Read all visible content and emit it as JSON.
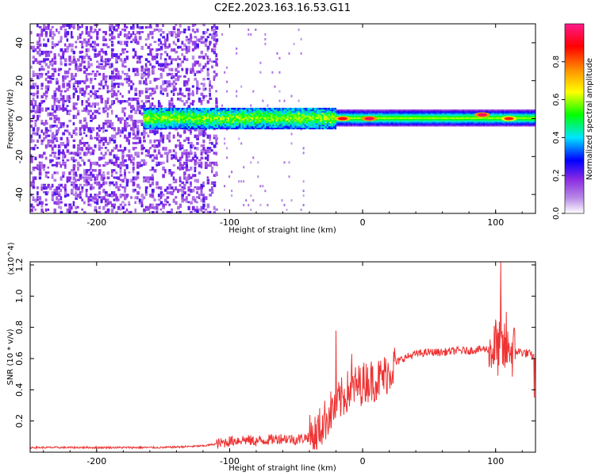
{
  "title": "C2E2.2023.163.16.53.G11",
  "chart_data": [
    {
      "type": "heatmap",
      "xlabel": "Height of straight line (km)",
      "ylabel": "Frequency (Hz)",
      "xlim": [
        -250,
        130
      ],
      "ylim": [
        -50,
        50
      ],
      "xticks": [
        -200,
        -100,
        0,
        100
      ],
      "yticks": [
        -40,
        -20,
        0,
        20,
        40
      ],
      "colorbar": {
        "label": "Normalized spectral amplitude",
        "range": [
          0,
          1
        ],
        "ticks": [
          "0.0",
          "0.2",
          "0.4",
          "0.6",
          "0.8"
        ],
        "colors": [
          "#ffffff",
          "#8a2be2",
          "#0000ff",
          "#00e5ff",
          "#00ff00",
          "#ffff00",
          "#ff8c00",
          "#ff0000",
          "#ff1a8c"
        ]
      },
      "features": [
        {
          "name": "noise",
          "x_range": [
            -250,
            -110
          ],
          "freq_range": [
            -50,
            50
          ]
        },
        {
          "name": "signal band",
          "x_range": [
            -165,
            130
          ],
          "center_freq": 0,
          "half_width": 4
        },
        {
          "name": "peak",
          "x": -15,
          "freq": 0,
          "amplitude": 0.9
        },
        {
          "name": "peak",
          "x": 5,
          "freq": 0,
          "amplitude": 0.95
        },
        {
          "name": "peak",
          "x": 90,
          "freq": 2,
          "amplitude": 0.95
        },
        {
          "name": "peak",
          "x": 110,
          "freq": 0,
          "amplitude": 0.85
        }
      ]
    },
    {
      "type": "line",
      "xlabel": "Height of straight line (km)",
      "ylabel": "SNR (10 * v/v)",
      "y_multiplier": "(x10^4)",
      "xlim": [
        -250,
        130
      ],
      "ylim": [
        0,
        1.22
      ],
      "xticks": [
        -200,
        -100,
        0,
        100
      ],
      "yticks": [
        "0.2",
        "0.4",
        "0.6",
        "0.8",
        "1.0",
        "1.2"
      ],
      "color": "#ee3333",
      "series": [
        {
          "x": [
            -250,
            -200,
            -150,
            -120,
            -105,
            -100,
            -90,
            -80,
            -70,
            -60,
            -50,
            -40,
            -35,
            -30,
            -25,
            -20,
            -15,
            -10,
            -5,
            0,
            5,
            10,
            15,
            20,
            25,
            30,
            40,
            50,
            60,
            70,
            80,
            90,
            95,
            100,
            105,
            110,
            115,
            120,
            125,
            130
          ],
          "y": [
            0.03,
            0.03,
            0.03,
            0.04,
            0.06,
            0.07,
            0.08,
            0.07,
            0.08,
            0.09,
            0.08,
            0.1,
            0.12,
            0.18,
            0.25,
            0.3,
            0.35,
            0.4,
            0.42,
            0.44,
            0.46,
            0.46,
            0.48,
            0.52,
            0.57,
            0.6,
            0.63,
            0.64,
            0.64,
            0.65,
            0.65,
            0.66,
            0.66,
            0.66,
            0.66,
            0.64,
            0.65,
            0.64,
            0.63,
            0.6
          ]
        }
      ],
      "spikes": [
        {
          "x": -20,
          "y": 0.78
        },
        {
          "x": -8,
          "y": 0.63
        },
        {
          "x": 3,
          "y": 0.36
        },
        {
          "x": 100,
          "y": 0.85
        },
        {
          "x": 104,
          "y": 1.22
        },
        {
          "x": 108,
          "y": 0.9
        },
        {
          "x": 110,
          "y": 0.7
        },
        {
          "x": 129,
          "y": 0.35
        }
      ]
    }
  ]
}
